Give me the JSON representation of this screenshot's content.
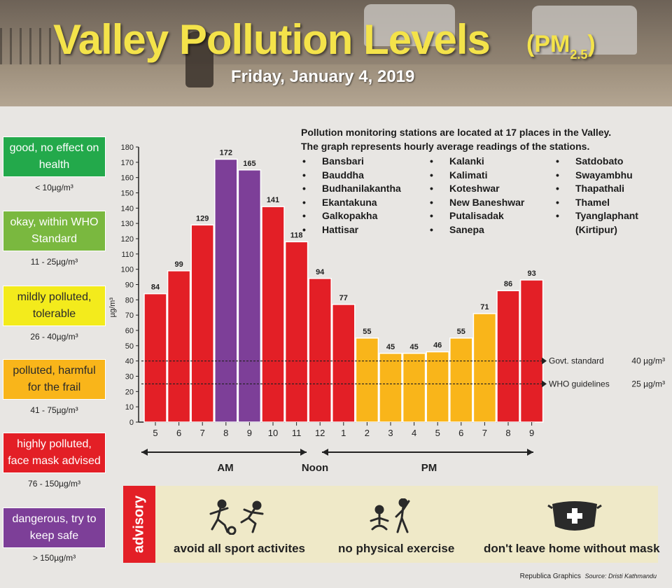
{
  "header": {
    "title": "Valley Pollution Levels",
    "unit_main": "(PM",
    "unit_sub": "2.5",
    "unit_close": ")",
    "date": "Friday, January 4, 2019"
  },
  "legend": [
    {
      "label": "good, no effect on health",
      "range": "< 10µg/m³",
      "color": "#23a94b",
      "text_color": "#ffffff"
    },
    {
      "label": "okay, within WHO Standard",
      "range": "11 - 25µg/m³",
      "color": "#7ab83f",
      "text_color": "#ffffff"
    },
    {
      "label": "mildly polluted, tolerable",
      "range": "26 - 40µg/m³",
      "color": "#f3eb1c",
      "text_color": "#2a2a2a"
    },
    {
      "label": "polluted, harmful for the frail",
      "range": "41 - 75µg/m³",
      "color": "#f9b51a",
      "text_color": "#2a2a2a"
    },
    {
      "label": "highly polluted, face mask advised",
      "range": "76 - 150µg/m³",
      "color": "#e31f26",
      "text_color": "#ffffff"
    },
    {
      "label": "dangerous, try to keep safe",
      "range": "> 150µg/m³",
      "color": "#7d3f98",
      "text_color": "#ffffff"
    }
  ],
  "stations": {
    "intro_line1": "Pollution monitoring stations are located at 17 places in the Valley.",
    "intro_line2": "The graph represents hourly average readings of the stations.",
    "col1": [
      "Bansbari",
      "Bauddha",
      "Budhanilakantha",
      "Ekantakuna",
      "Galkopakha",
      "Hattisar"
    ],
    "col2": [
      "Kalanki",
      "Kalimati",
      "Koteshwar",
      "New Baneshwar",
      "Putalisadak",
      "Sanepa"
    ],
    "col3": [
      "Satdobato",
      "Swayambhu",
      "Thapathali",
      "Thamel",
      "Tyanglaphant",
      "(Kirtipur)"
    ]
  },
  "chart_data": {
    "type": "bar",
    "categories": [
      "5",
      "6",
      "7",
      "8",
      "9",
      "10",
      "11",
      "12",
      "1",
      "2",
      "3",
      "4",
      "5",
      "6",
      "7",
      "8",
      "9"
    ],
    "values": [
      84,
      99,
      129,
      172,
      165,
      141,
      118,
      94,
      77,
      55,
      45,
      45,
      46,
      55,
      71,
      86,
      93
    ],
    "colors": [
      "#e31f26",
      "#e31f26",
      "#e31f26",
      "#7d3f98",
      "#7d3f98",
      "#e31f26",
      "#e31f26",
      "#e31f26",
      "#e31f26",
      "#f9b51a",
      "#f9b51a",
      "#f9b51a",
      "#f9b51a",
      "#f9b51a",
      "#f9b51a",
      "#e31f26",
      "#e31f26"
    ],
    "ylabel": "µg/m³",
    "ylim": [
      0,
      180
    ],
    "yticks": [
      0,
      10,
      20,
      30,
      40,
      50,
      60,
      70,
      80,
      90,
      100,
      110,
      120,
      130,
      140,
      150,
      160,
      170,
      180
    ],
    "reference_lines": [
      {
        "value": 40,
        "label": "Govt. standard",
        "value_label": "40 µg/m³"
      },
      {
        "value": 25,
        "label": "WHO guidelines",
        "value_label": "25 µg/m³"
      }
    ],
    "periods": {
      "am": "AM",
      "noon": "Noon",
      "pm": "PM"
    }
  },
  "advisory": {
    "tab": "advisory",
    "items": [
      {
        "label": "avoid all sport activites",
        "icon": "sport-icon"
      },
      {
        "label": "no physical exercise",
        "icon": "exercise-icon"
      },
      {
        "label": "don't leave home without mask",
        "icon": "mask-icon"
      }
    ]
  },
  "credit": {
    "publisher": "Republica Graphics",
    "source": "Source: Dristi Kathmandu"
  }
}
